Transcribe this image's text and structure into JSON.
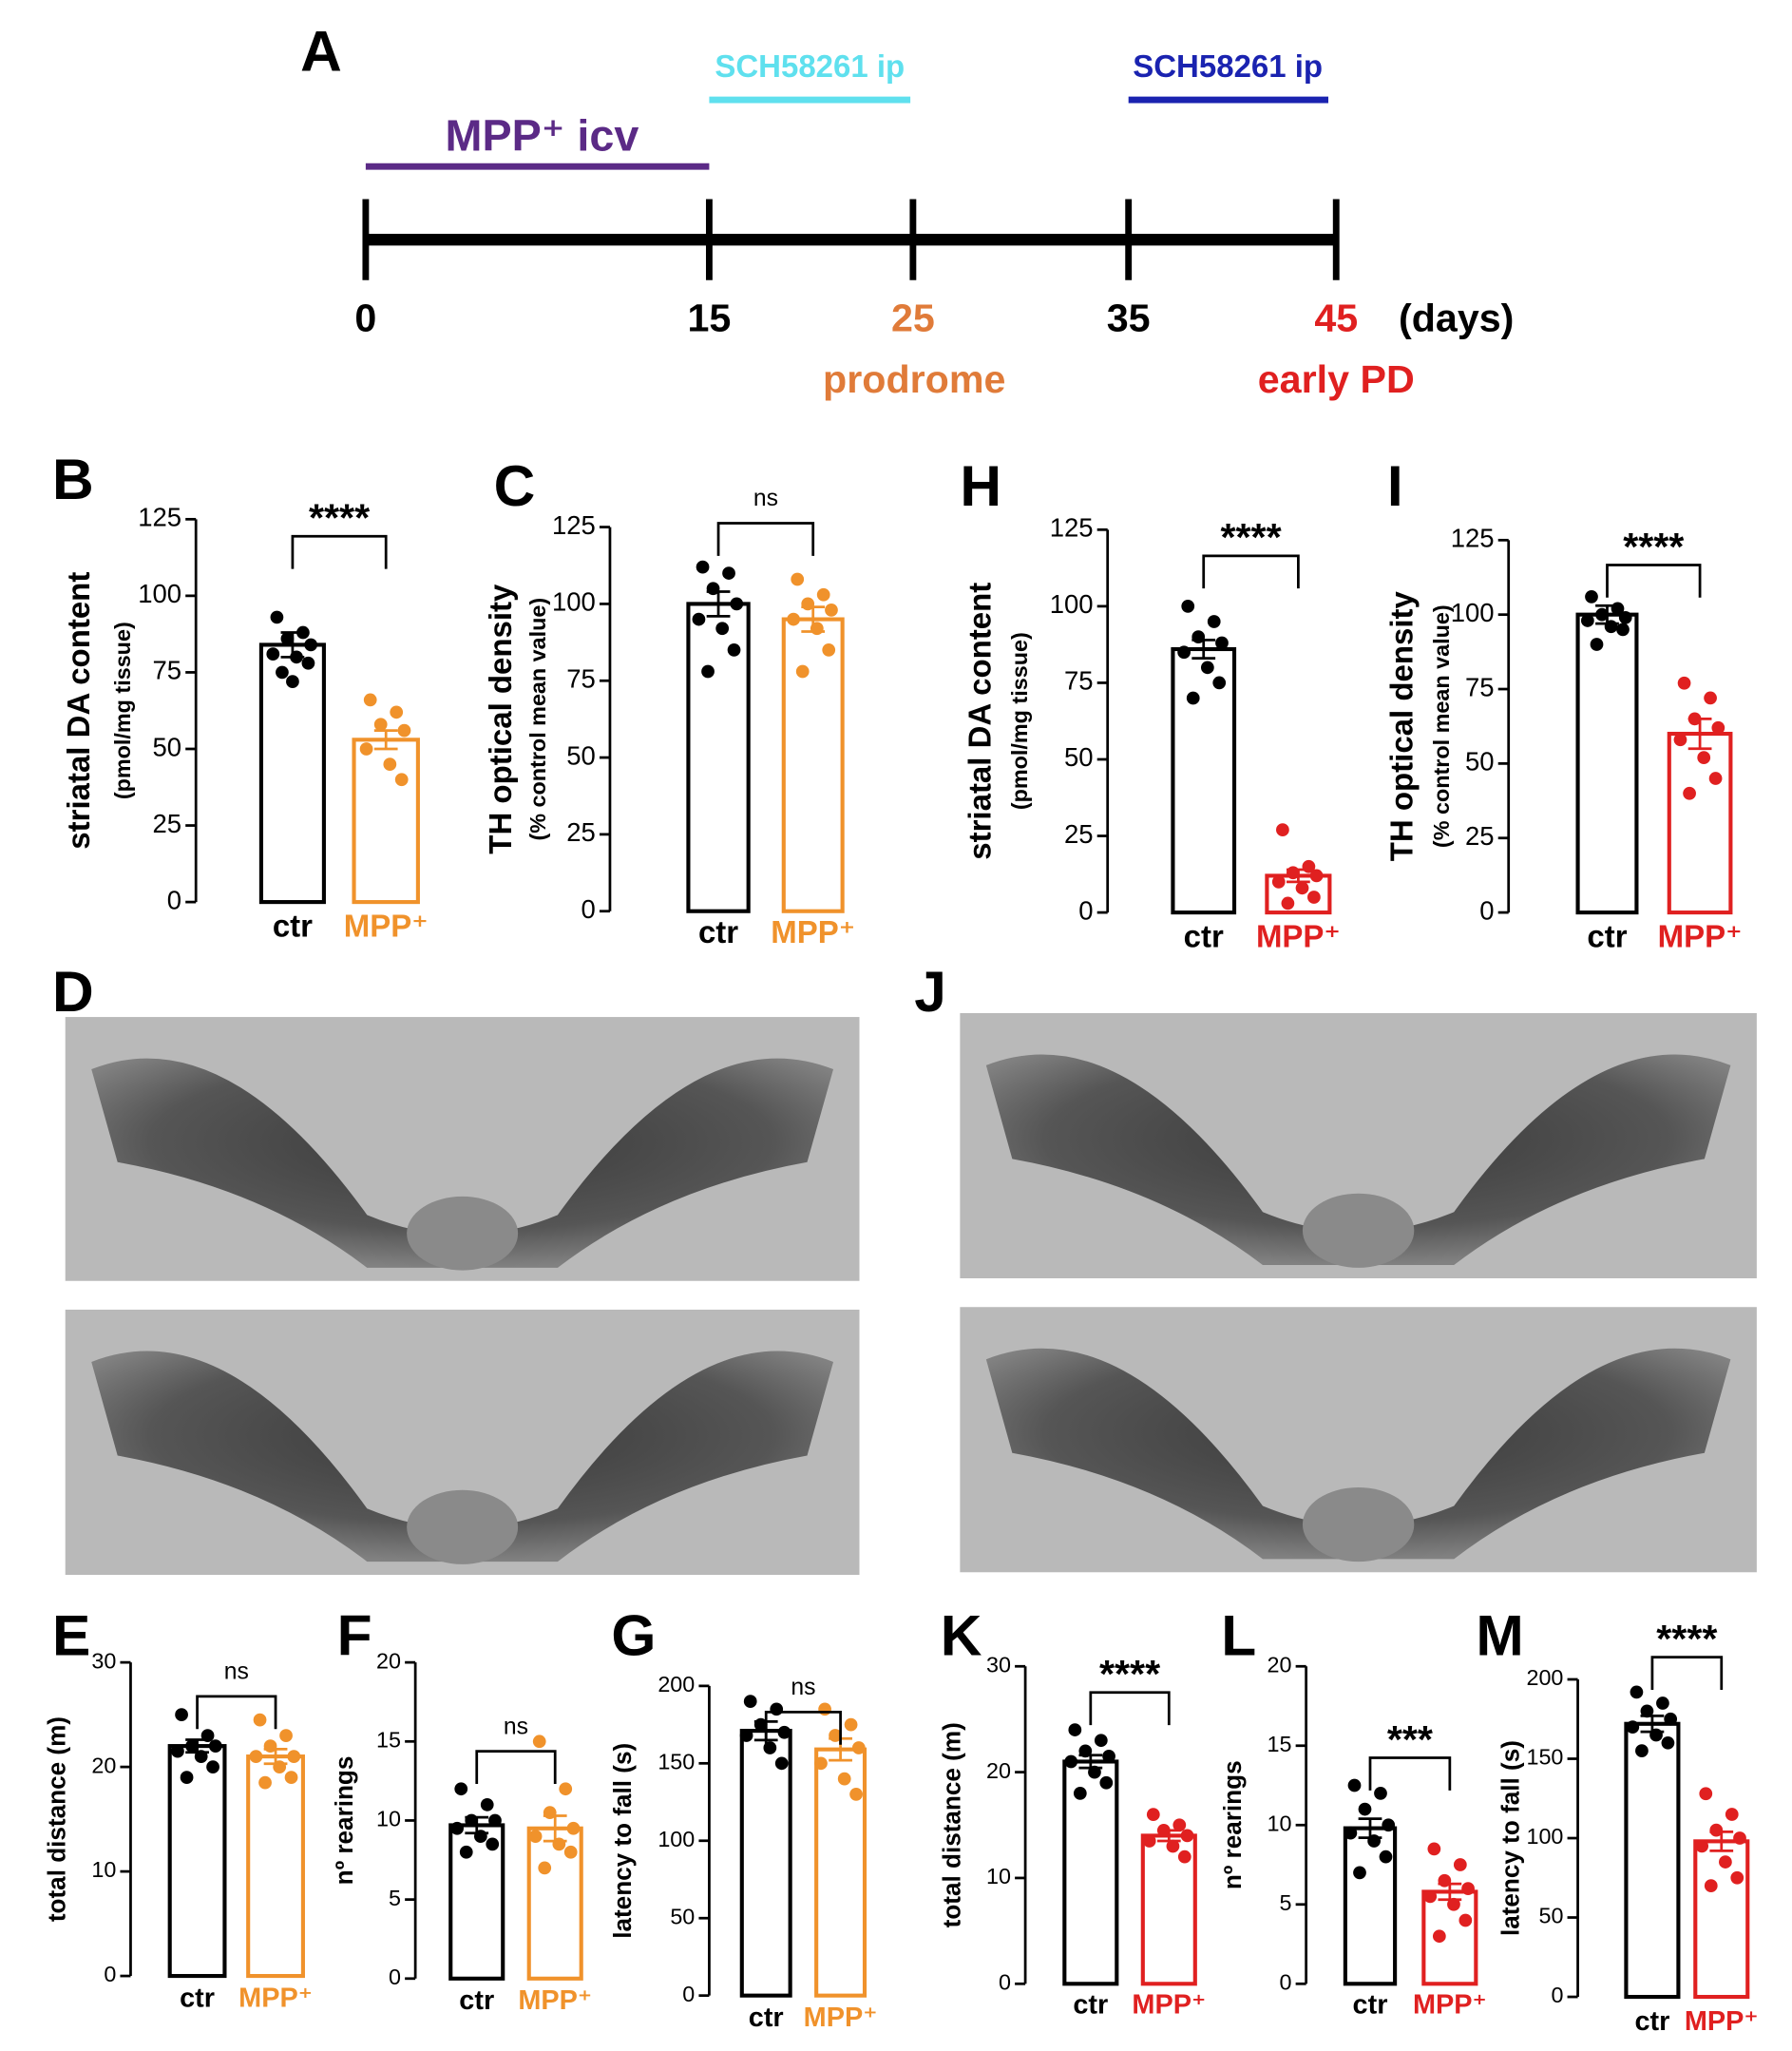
{
  "timeline": {
    "panel": "A",
    "ticks": [
      "0",
      "15",
      "25",
      "35",
      "45"
    ],
    "unit": "(days)",
    "phases": [
      {
        "label": "prodrome"
      },
      {
        "label": "early PD"
      }
    ],
    "treatments": [
      {
        "label": "MPP⁺ icv"
      },
      {
        "label": "SCH58261 ip"
      },
      {
        "label": "SCH58261 ip"
      }
    ]
  },
  "images": [
    {
      "panel": "D"
    },
    {
      "panel": "J"
    }
  ],
  "chart_data": [
    {
      "type": "bar",
      "panel": "B",
      "ylabel": "striatal DA content",
      "ylabel_sub": "(pmol/mg tissue)",
      "categories": [
        "ctr",
        "MPP⁺"
      ],
      "colors": [
        "#000000",
        "#f0922b"
      ],
      "values": [
        84,
        53
      ],
      "errors": [
        4,
        3
      ],
      "points": [
        [
          93,
          88,
          86,
          84,
          81,
          80,
          78,
          75,
          72
        ],
        [
          66,
          62,
          58,
          56,
          50,
          45,
          40
        ]
      ],
      "significance": "****",
      "ylim": [
        0,
        125
      ],
      "yticks": [
        0,
        25,
        50,
        75,
        100,
        125
      ]
    },
    {
      "type": "bar",
      "panel": "C",
      "ylabel": "TH optical density",
      "ylabel_sub": "(% control mean value)",
      "categories": [
        "ctr",
        "MPP⁺"
      ],
      "colors": [
        "#000000",
        "#f0922b"
      ],
      "values": [
        100,
        95
      ],
      "errors": [
        4,
        4
      ],
      "points": [
        [
          112,
          110,
          105,
          100,
          95,
          92,
          85,
          78
        ],
        [
          108,
          103,
          100,
          98,
          95,
          92,
          85,
          78
        ]
      ],
      "significance": "ns",
      "ylim": [
        0,
        125
      ],
      "yticks": [
        0,
        25,
        50,
        75,
        100,
        125
      ]
    },
    {
      "type": "bar",
      "panel": "H",
      "ylabel": "striatal DA content",
      "ylabel_sub": "(pmol/mg tissue)",
      "categories": [
        "ctr",
        "MPP⁺"
      ],
      "colors": [
        "#000000",
        "#e02020"
      ],
      "values": [
        86,
        12
      ],
      "errors": [
        3,
        2
      ],
      "points": [
        [
          100,
          95,
          90,
          88,
          85,
          80,
          75,
          70
        ],
        [
          27,
          15,
          13,
          12,
          10,
          8,
          5,
          3
        ]
      ],
      "significance": "****",
      "ylim": [
        0,
        125
      ],
      "yticks": [
        0,
        25,
        50,
        75,
        100,
        125
      ]
    },
    {
      "type": "bar",
      "panel": "I",
      "ylabel": "TH optical density",
      "ylabel_sub": "(% control mean value)",
      "categories": [
        "ctr",
        "MPP⁺"
      ],
      "colors": [
        "#000000",
        "#e02020"
      ],
      "values": [
        100,
        60
      ],
      "errors": [
        3,
        5
      ],
      "points": [
        [
          106,
          102,
          100,
          99,
          98,
          96,
          95,
          90
        ],
        [
          77,
          72,
          65,
          62,
          58,
          52,
          45,
          40
        ]
      ],
      "significance": "****",
      "ylim": [
        0,
        125
      ],
      "yticks": [
        0,
        25,
        50,
        75,
        100,
        125
      ]
    },
    {
      "type": "bar",
      "panel": "E",
      "ylabel": "total distance (m)",
      "categories": [
        "ctr",
        "MPP⁺"
      ],
      "colors": [
        "#000000",
        "#f0922b"
      ],
      "values": [
        22,
        21
      ],
      "errors": [
        0.6,
        0.7
      ],
      "points": [
        [
          25,
          23,
          22,
          22,
          21.5,
          21,
          20,
          19
        ],
        [
          24.5,
          23,
          22,
          21,
          21,
          20,
          19,
          18.5
        ]
      ],
      "significance": "ns",
      "ylim": [
        0,
        30
      ],
      "yticks": [
        0,
        10,
        20,
        30
      ]
    },
    {
      "type": "bar",
      "panel": "F",
      "ylabel": "nº rearings",
      "categories": [
        "ctr",
        "MPP⁺"
      ],
      "colors": [
        "#000000",
        "#f0922b"
      ],
      "values": [
        9.7,
        9.5
      ],
      "errors": [
        0.5,
        0.8
      ],
      "points": [
        [
          12,
          11,
          10,
          10,
          9.5,
          9,
          8.5,
          8
        ],
        [
          15,
          12,
          10.5,
          9.5,
          9,
          8.5,
          8,
          7
        ]
      ],
      "significance": "ns",
      "ylim": [
        0,
        20
      ],
      "yticks": [
        0,
        5,
        10,
        15,
        20
      ]
    },
    {
      "type": "bar",
      "panel": "G",
      "ylabel": "latency to fall (s)",
      "categories": [
        "ctr",
        "MPP⁺"
      ],
      "colors": [
        "#000000",
        "#f0922b"
      ],
      "values": [
        171,
        159
      ],
      "errors": [
        6,
        7
      ],
      "points": [
        [
          190,
          185,
          175,
          170,
          168,
          160,
          150
        ],
        [
          185,
          175,
          168,
          160,
          150,
          140,
          130
        ]
      ],
      "significance": "ns",
      "ylim": [
        0,
        200
      ],
      "yticks": [
        0,
        50,
        100,
        150,
        200
      ]
    },
    {
      "type": "bar",
      "panel": "K",
      "ylabel": "total distance (m)",
      "categories": [
        "ctr",
        "MPP⁺"
      ],
      "colors": [
        "#000000",
        "#e02020"
      ],
      "values": [
        21,
        14
      ],
      "errors": [
        0.6,
        0.5
      ],
      "points": [
        [
          24,
          23,
          22,
          21.5,
          21,
          20,
          19,
          18
        ],
        [
          16,
          15,
          14.5,
          14,
          13.5,
          13,
          12
        ]
      ],
      "significance": "****",
      "ylim": [
        0,
        30
      ],
      "yticks": [
        0,
        10,
        20,
        30
      ]
    },
    {
      "type": "bar",
      "panel": "L",
      "ylabel": "nº rearings",
      "categories": [
        "ctr",
        "MPP⁺"
      ],
      "colors": [
        "#000000",
        "#e02020"
      ],
      "values": [
        9.8,
        5.8
      ],
      "errors": [
        0.6,
        0.5
      ],
      "points": [
        [
          12.5,
          12,
          11,
          10,
          9.5,
          9,
          8,
          7
        ],
        [
          8.5,
          7.5,
          6.5,
          6,
          5.5,
          5,
          4,
          3
        ]
      ],
      "significance": "***",
      "ylim": [
        0,
        20
      ],
      "yticks": [
        0,
        5,
        10,
        15,
        20
      ]
    },
    {
      "type": "bar",
      "panel": "M",
      "ylabel": "latency to fall (s)",
      "categories": [
        "ctr",
        "MPP⁺"
      ],
      "colors": [
        "#000000",
        "#e02020"
      ],
      "values": [
        172,
        98
      ],
      "errors": [
        5,
        6
      ],
      "points": [
        [
          192,
          185,
          180,
          175,
          170,
          165,
          160,
          155
        ],
        [
          128,
          115,
          105,
          100,
          95,
          85,
          75,
          70
        ]
      ],
      "significance": "****",
      "ylim": [
        0,
        200
      ],
      "yticks": [
        0,
        50,
        100,
        150,
        200
      ]
    }
  ]
}
